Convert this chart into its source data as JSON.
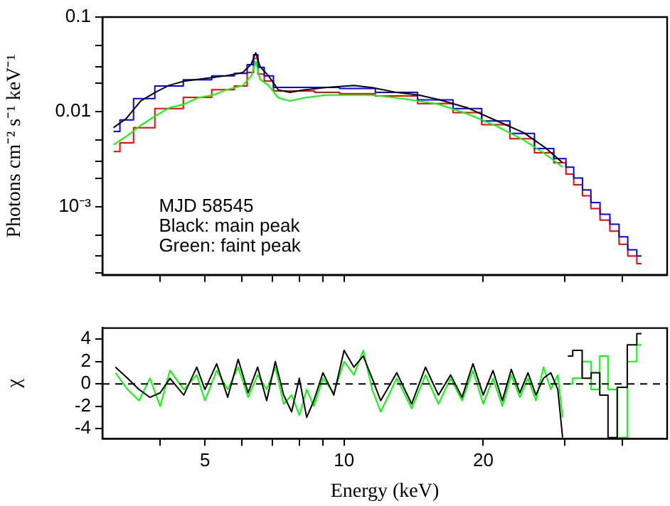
{
  "chart_data": [
    {
      "type": "line",
      "ylabel": "Photons cm⁻² s⁻¹ keV⁻¹",
      "log": "xy",
      "grid": false,
      "legend": false,
      "tick_labels": "y",
      "marker": "none",
      "line_style": "solid",
      "xlim": [
        3,
        50
      ],
      "xticks": [
        {
          "value": 4,
          "label": null
        },
        {
          "value": 5,
          "label": null
        },
        {
          "value": 6,
          "label": null
        },
        {
          "value": 7,
          "label": null
        },
        {
          "value": 8,
          "label": null
        },
        {
          "value": 9,
          "label": null
        },
        {
          "value": 10,
          "label": null
        },
        {
          "value": 20,
          "label": null
        },
        {
          "value": 30,
          "label": null
        },
        {
          "value": 40,
          "label": null
        }
      ],
      "ylim": [
        0.00019,
        0.1
      ],
      "yticks": [
        {
          "value": 0.0002,
          "label": null
        },
        {
          "value": 0.0003,
          "label": null
        },
        {
          "value": 0.0005,
          "label": null
        },
        {
          "value": 0.001,
          "label": "10⁻³"
        },
        {
          "value": 0.002,
          "label": null
        },
        {
          "value": 0.003,
          "label": null
        },
        {
          "value": 0.005,
          "label": null
        },
        {
          "value": 0.01,
          "label": "0.01"
        },
        {
          "value": 0.02,
          "label": null
        },
        {
          "value": 0.03,
          "label": null
        },
        {
          "value": 0.05,
          "label": null
        },
        {
          "value": 0.1,
          "label": "0.1"
        }
      ],
      "annotations": [
        "MJD 58545",
        "Black: main peak",
        "Green: faint peak"
      ],
      "series": [
        {
          "type": "line",
          "color": "#000000",
          "x": [
            3.17,
            3.38,
            3.63,
            3.9,
            4.18,
            4.5,
            4.82,
            5.2,
            5.55,
            5.8,
            6.04,
            6.3,
            6.44,
            6.58,
            6.86,
            7.21,
            7.63,
            8.19,
            9.1,
            10.5,
            11.5,
            13.0,
            14.5,
            16.0,
            18.5,
            21.3,
            24.5,
            27.2,
            29.7
          ],
          "values": [
            0.0068,
            0.0085,
            0.013,
            0.016,
            0.019,
            0.021,
            0.022,
            0.023,
            0.024,
            0.025,
            0.026,
            0.032,
            0.042,
            0.03,
            0.024,
            0.017,
            0.016,
            0.017,
            0.018,
            0.019,
            0.018,
            0.016,
            0.015,
            0.0135,
            0.011,
            0.0081,
            0.006,
            0.0042,
            0.0029
          ]
        },
        {
          "type": "line",
          "color": "#00ff00",
          "x": [
            3.17,
            3.38,
            3.63,
            3.9,
            4.18,
            4.5,
            4.82,
            5.2,
            5.55,
            5.8,
            6.04,
            6.3,
            6.44,
            6.58,
            6.86,
            7.21,
            7.63,
            8.19,
            9.1,
            10.5,
            11.5,
            13.0,
            14.5,
            16.0,
            18.5,
            21.3,
            24.5,
            27.2,
            29.7
          ],
          "values": [
            0.0045,
            0.0055,
            0.0072,
            0.009,
            0.011,
            0.012,
            0.014,
            0.015,
            0.017,
            0.018,
            0.019,
            0.024,
            0.034,
            0.022,
            0.019,
            0.014,
            0.013,
            0.014,
            0.015,
            0.015,
            0.015,
            0.014,
            0.013,
            0.012,
            0.0095,
            0.0071,
            0.005,
            0.0036,
            0.0026
          ]
        },
        {
          "type": "step",
          "color": "#0000ff",
          "x": [
            3.17,
            3.38,
            3.63,
            4.18,
            4.82,
            5.55,
            6.04,
            6.3,
            6.44,
            6.58,
            6.86,
            7.21,
            7.63,
            8.19,
            9.1,
            10.5,
            13.0,
            16.0,
            18.5,
            21.3,
            24.5,
            27.2,
            29.7,
            30.7,
            32.1,
            33.5,
            34.9,
            36.7,
            38.5,
            40.2,
            42.0,
            44.0
          ],
          "values": [
            0.0062,
            0.0082,
            0.0138,
            0.0187,
            0.0218,
            0.0239,
            0.0254,
            0.0314,
            0.0401,
            0.0295,
            0.0239,
            0.0181,
            0.0181,
            0.0181,
            0.0181,
            0.0176,
            0.016,
            0.0134,
            0.0108,
            0.008,
            0.0059,
            0.0041,
            0.0032,
            0.0026,
            0.002,
            0.0015,
            0.0011,
            0.00083,
            0.00065,
            0.00048,
            0.00035,
            0.0003
          ]
        },
        {
          "type": "step",
          "color": "#ff0000",
          "x": [
            3.17,
            3.38,
            3.63,
            4.18,
            4.82,
            5.55,
            6.04,
            6.3,
            6.44,
            6.58,
            6.86,
            7.21,
            7.63,
            8.19,
            9.1,
            10.5,
            13.0,
            16.0,
            18.5,
            21.3,
            24.5,
            27.2,
            29.7,
            30.7,
            32.1,
            33.5,
            34.9,
            36.7,
            38.5,
            40.2,
            42.0,
            44.0
          ],
          "values": [
            0.0038,
            0.0047,
            0.0068,
            0.0108,
            0.0142,
            0.0171,
            0.0187,
            0.026,
            0.0366,
            0.025,
            0.0211,
            0.0166,
            0.0166,
            0.0166,
            0.016,
            0.0155,
            0.0147,
            0.0122,
            0.0098,
            0.0073,
            0.0052,
            0.0037,
            0.0029,
            0.0022,
            0.0017,
            0.0013,
            0.00095,
            0.00072,
            0.00055,
            0.0004,
            0.0003,
            0.00025
          ]
        }
      ]
    },
    {
      "type": "line",
      "xlabel": "Energy (keV)",
      "ylabel": "χ",
      "log": "x",
      "grid": false,
      "legend": false,
      "marker": "none",
      "line_style": "solid",
      "xlim": [
        3,
        50
      ],
      "xticks": [
        {
          "value": 4,
          "label": null
        },
        5,
        {
          "value": 6,
          "label": null
        },
        {
          "value": 7,
          "label": null
        },
        {
          "value": 8,
          "label": null
        },
        {
          "value": 9,
          "label": null
        },
        10,
        20,
        {
          "value": 30,
          "label": null
        },
        {
          "value": 40,
          "label": null
        }
      ],
      "ylim": [
        -4.9,
        5
      ],
      "yticks": [
        -4,
        -2,
        0,
        2,
        4
      ],
      "ref_lines": [
        {
          "axis": "y",
          "value": 0,
          "color": "#000000",
          "line_style": "dashed"
        }
      ],
      "series": [
        {
          "type": "line",
          "color": "#000000",
          "x": [
            3.2,
            3.4,
            3.6,
            3.8,
            4.0,
            4.2,
            4.5,
            4.8,
            5.0,
            5.3,
            5.6,
            5.9,
            6.2,
            6.5,
            6.8,
            7.1,
            7.4,
            7.7,
            8.0,
            8.3,
            8.6,
            9.0,
            9.5,
            10.0,
            10.5,
            11,
            11.5,
            12,
            13,
            14,
            15,
            16,
            17,
            18,
            19,
            20,
            21,
            22,
            23,
            24,
            25,
            26,
            27,
            28,
            29,
            29.7
          ],
          "values": [
            1.5,
            0.5,
            -0.5,
            -1.2,
            -0.8,
            0.5,
            -1,
            1.5,
            -0.5,
            1.8,
            -1.2,
            2.2,
            -0.8,
            1.5,
            -1.5,
            2,
            -1,
            -2.5,
            0.5,
            -3,
            -1.5,
            1,
            -1,
            3,
            1.5,
            2.5,
            0.5,
            -1.5,
            1,
            -1.8,
            1.5,
            -1,
            0.8,
            -1.2,
            1.8,
            -1,
            1.2,
            -1.5,
            1.3,
            -0.8,
            1,
            -1,
            0.5,
            1,
            -0.5,
            -4.8
          ]
        },
        {
          "type": "step",
          "color": "#000000",
          "x": [
            30.5,
            32,
            33.5,
            35,
            36.5,
            38,
            40,
            42,
            44
          ],
          "values": [
            2.5,
            3,
            0.5,
            1,
            -1,
            -4.8,
            -0.3,
            3.5,
            4.5
          ]
        },
        {
          "type": "line",
          "color": "#00ff00",
          "x": [
            3.2,
            3.4,
            3.6,
            3.8,
            4.0,
            4.2,
            4.5,
            4.8,
            5.0,
            5.3,
            5.6,
            5.9,
            6.2,
            6.5,
            6.8,
            7.1,
            7.4,
            7.7,
            8.0,
            8.3,
            8.6,
            9.0,
            9.5,
            10.0,
            10.5,
            11,
            11.5,
            12,
            13,
            14,
            15,
            16,
            17,
            18,
            19,
            20,
            21,
            22,
            23,
            24,
            25,
            26,
            27,
            28,
            29,
            29.7
          ],
          "values": [
            1,
            -0.5,
            -1.5,
            0.5,
            -2,
            1.2,
            -0.5,
            0.8,
            -1.5,
            1.2,
            -0.5,
            1.5,
            -1.2,
            0.8,
            -0.5,
            1.5,
            -1.8,
            -1,
            -2.8,
            -0.5,
            -2,
            0.5,
            -0.8,
            2,
            0.8,
            3,
            -0.5,
            -2.5,
            0.5,
            -2.2,
            0.8,
            -1.8,
            0.5,
            -1.5,
            1.2,
            -1.8,
            0.5,
            -2,
            0.8,
            -1.2,
            0.5,
            -1.5,
            1.5,
            -0.5,
            0.8,
            -3
          ]
        },
        {
          "type": "step",
          "color": "#00ff00",
          "x": [
            30.5,
            32,
            33.5,
            35,
            36.5,
            38,
            40,
            42,
            44
          ],
          "values": [
            0,
            0.5,
            2,
            -0.5,
            2.5,
            -0.5,
            -4.8,
            2,
            3.5
          ]
        }
      ]
    }
  ]
}
